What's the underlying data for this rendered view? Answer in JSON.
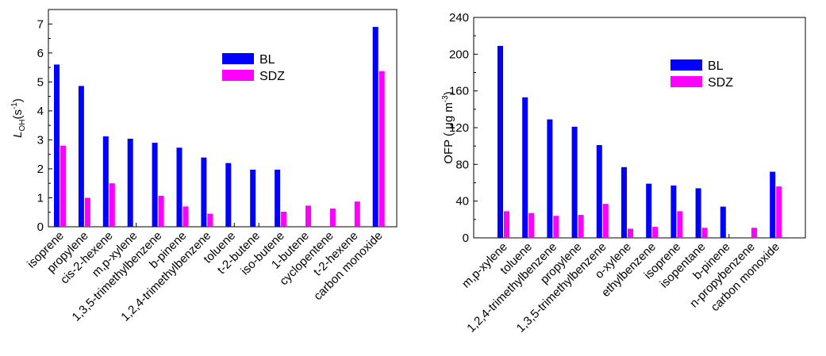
{
  "chart_data": [
    {
      "type": "bar",
      "title": "",
      "xlabel": "",
      "ylabel": {
        "main": "L",
        "sub": "OH",
        "rest": "(s",
        "sup": "-1",
        "close": ")"
      },
      "ylim": [
        0,
        7.5
      ],
      "yticks": [
        "0",
        "1",
        "2",
        "3",
        "4",
        "5",
        "6",
        "7"
      ],
      "grid": false,
      "legend_position": "top-right",
      "categories": [
        "isoprene",
        "propylene",
        "cis-2-hexene",
        "m,p-xylene",
        "1,3,5-trimethylbenzene",
        "b-pinene",
        "1,2,4-trimethylbenzene",
        "toluene",
        "t-2-butene",
        "iso-butene",
        "1-butene",
        "cyclopentene",
        "t-2-hexene",
        "carbon monoxide"
      ],
      "series": [
        {
          "name": "BL",
          "color": "#0000ff",
          "values": [
            5.6,
            4.86,
            3.12,
            3.04,
            2.9,
            2.73,
            2.39,
            2.2,
            1.97,
            1.97,
            0,
            0,
            0,
            6.9
          ]
        },
        {
          "name": "SDZ",
          "color": "#ff00ff",
          "values": [
            2.8,
            1.0,
            1.5,
            0,
            1.07,
            0.7,
            0.45,
            0,
            0,
            0.52,
            0.73,
            0.63,
            0.87,
            5.37
          ]
        }
      ]
    },
    {
      "type": "bar",
      "title": "",
      "xlabel": "",
      "ylabel": {
        "main": "OFP ( μg m",
        "sup": "-3",
        "close": ")"
      },
      "ylim": [
        0,
        240
      ],
      "yticks": [
        "0",
        "40",
        "80",
        "120",
        "160",
        "200",
        "240"
      ],
      "grid": false,
      "legend_position": "top-right",
      "categories": [
        "m,p-xylene",
        "toluene",
        "1,2,4-trimethylbenzene",
        "propylene",
        "1,3,5-trimethylbenzene",
        "o-xylene",
        "ethylbenzene",
        "isoprene",
        "isopentane",
        "b-pinene",
        "n-propybenzene",
        "carbon monoxide"
      ],
      "series": [
        {
          "name": "BL",
          "color": "#0000ff",
          "values": [
            209,
            153,
            129,
            121,
            101,
            77,
            59,
            57,
            54,
            34,
            0,
            72
          ]
        },
        {
          "name": "SDZ",
          "color": "#ff00ff",
          "values": [
            29,
            27,
            24,
            25,
            37,
            10,
            12,
            29,
            11,
            0,
            11,
            56
          ]
        }
      ]
    }
  ]
}
